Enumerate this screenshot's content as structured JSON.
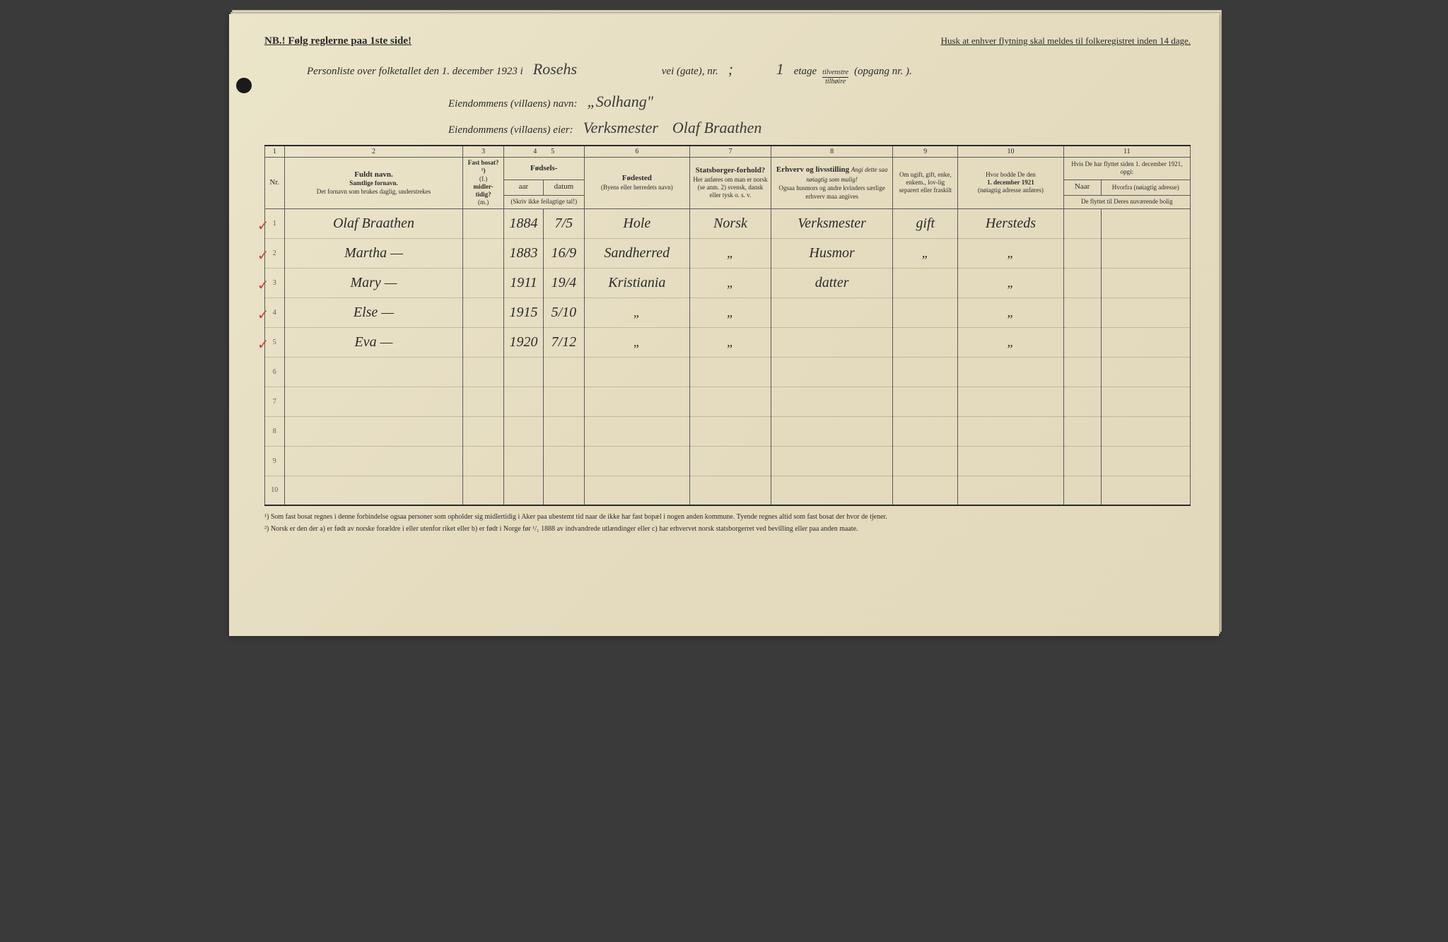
{
  "top": {
    "nb": "NB.! Følg reglerne paa 1ste side!",
    "husk": "Husk at enhver flytning skal meldes til folkeregistret inden 14 dage."
  },
  "header": {
    "line1_prefix": "Personliste over folketallet den 1. december 1923 i",
    "street": "Rosehs",
    "vei_label": "vei (gate), nr.",
    "nr": ";",
    "etage_num": "1",
    "etage_label": "etage",
    "frac_top": "tilvenstre",
    "frac_bot": "tilhøire",
    "opgang": "(opgang nr.     ).",
    "eiendom_navn_label": "Eiendommens (villaens) navn:",
    "eiendom_navn": "„Solhang\"",
    "eiendom_eier_label": "Eiendommens (villaens) eier:",
    "eiendom_eier_title": "Verksmester",
    "eiendom_eier_name": "Olaf Braathen"
  },
  "colnums": [
    "1",
    "2",
    "3",
    "4",
    "5",
    "6",
    "7",
    "8",
    "9",
    "10",
    "11"
  ],
  "columns": {
    "nr": "Nr.",
    "name_main": "Fuldt navn.",
    "name_sub1": "Samtlige fornavn.",
    "name_sub2": "Det fornavn som brukes daglig, understrekes",
    "bosat_main": "Fast bosat? ¹)",
    "bosat_f": "(f.)",
    "bosat_mid": "midler-tidig?",
    "bosat_m": "(m.)",
    "fodsel": "Fødsels-",
    "aar": "aar",
    "datum": "datum",
    "aar_sub": "(Skriv ikke feilagtige tal!)",
    "fodested": "Fødested",
    "fodested_sub": "(Byens eller herredets navn)",
    "stats": "Statsborger-forhold?",
    "stats_sub": "Her anføres om man er norsk (se anm. 2) svensk, dansk eller tysk o. s. v.",
    "erhv_main": "Erhverv og livsstilling",
    "erhv_ital": "Angi dette saa nøiagtig som mulig!",
    "erhv_sub": "Ogsaa husmors og andre kvinders særlige erhverv maa angives",
    "gift": "Om ugift, gift, enke, enkem., lov-lig separert eller fraskilt",
    "bodde_main": "Hvor bodde De den",
    "bodde_date": "1. december 1921",
    "bodde_sub": "(nøiagtig adresse anføres)",
    "flyt_main": "Hvis De har flyttet siden 1. december 1921, opgi:",
    "flyt_naar": "Naar",
    "flyt_hvor": "Hvorfra (nøiagtig adresse)",
    "flyt_sub": "De flyttet til Deres nuværende bolig"
  },
  "rows": [
    {
      "n": "1",
      "check": true,
      "name": "Olaf Braathen",
      "bosat": "",
      "aar": "1884",
      "datum": "7/5",
      "fodested": "Hole",
      "stats": "Norsk",
      "erhv": "Verksmester",
      "gift": "gift",
      "bodde": "Hersteds",
      "naar": "",
      "hvor": ""
    },
    {
      "n": "2",
      "check": true,
      "name": "Martha    —",
      "bosat": "",
      "aar": "1883",
      "datum": "16/9",
      "fodested": "Sandherred",
      "stats": "\"",
      "erhv": "Husmor",
      "gift": "\"",
      "bodde": "\"",
      "naar": "",
      "hvor": ""
    },
    {
      "n": "3",
      "check": true,
      "name": "Mary   —",
      "bosat": "",
      "aar": "1911",
      "datum": "19/4",
      "fodested": "Kristiania",
      "stats": "\"",
      "erhv": "datter",
      "gift": "",
      "bodde": "\"",
      "naar": "",
      "hvor": ""
    },
    {
      "n": "4",
      "check": true,
      "name": "Else   —",
      "bosat": "",
      "aar": "1915",
      "datum": "5/10",
      "fodested": "\"",
      "stats": "\"",
      "erhv": "",
      "gift": "",
      "bodde": "\"",
      "naar": "",
      "hvor": ""
    },
    {
      "n": "5",
      "check": true,
      "name": "Eva   —",
      "bosat": "",
      "aar": "1920",
      "datum": "7/12",
      "fodested": "\"",
      "stats": "\"",
      "erhv": "",
      "gift": "",
      "bodde": "\"",
      "naar": "",
      "hvor": ""
    },
    {
      "n": "6",
      "check": false,
      "name": "",
      "bosat": "",
      "aar": "",
      "datum": "",
      "fodested": "",
      "stats": "",
      "erhv": "",
      "gift": "",
      "bodde": "",
      "naar": "",
      "hvor": ""
    },
    {
      "n": "7",
      "check": false,
      "name": "",
      "bosat": "",
      "aar": "",
      "datum": "",
      "fodested": "",
      "stats": "",
      "erhv": "",
      "gift": "",
      "bodde": "",
      "naar": "",
      "hvor": ""
    },
    {
      "n": "8",
      "check": false,
      "name": "",
      "bosat": "",
      "aar": "",
      "datum": "",
      "fodested": "",
      "stats": "",
      "erhv": "",
      "gift": "",
      "bodde": "",
      "naar": "",
      "hvor": ""
    },
    {
      "n": "9",
      "check": false,
      "name": "",
      "bosat": "",
      "aar": "",
      "datum": "",
      "fodested": "",
      "stats": "",
      "erhv": "",
      "gift": "",
      "bodde": "",
      "naar": "",
      "hvor": ""
    },
    {
      "n": "10",
      "check": false,
      "name": "",
      "bosat": "",
      "aar": "",
      "datum": "",
      "fodested": "",
      "stats": "",
      "erhv": "",
      "gift": "",
      "bodde": "",
      "naar": "",
      "hvor": ""
    }
  ],
  "footnotes": {
    "f1": "¹) Som fast bosat regnes i denne forbindelse ogsaa personer som opholder sig midlertidig i Aker paa ubestemt tid naar de ikke har fast bopæl i nogen anden kommune. Tyende regnes altid som fast bosat der hvor de tjener.",
    "f2": "²) Norsk er den der a) er født av norske forældre i eller utenfor riket eller b) er født i Norge før ¹/₁ 1888 av indvandrede utlændinger eller c) har erhvervet norsk statsborgerret ved bevilling eller paa anden maate."
  }
}
